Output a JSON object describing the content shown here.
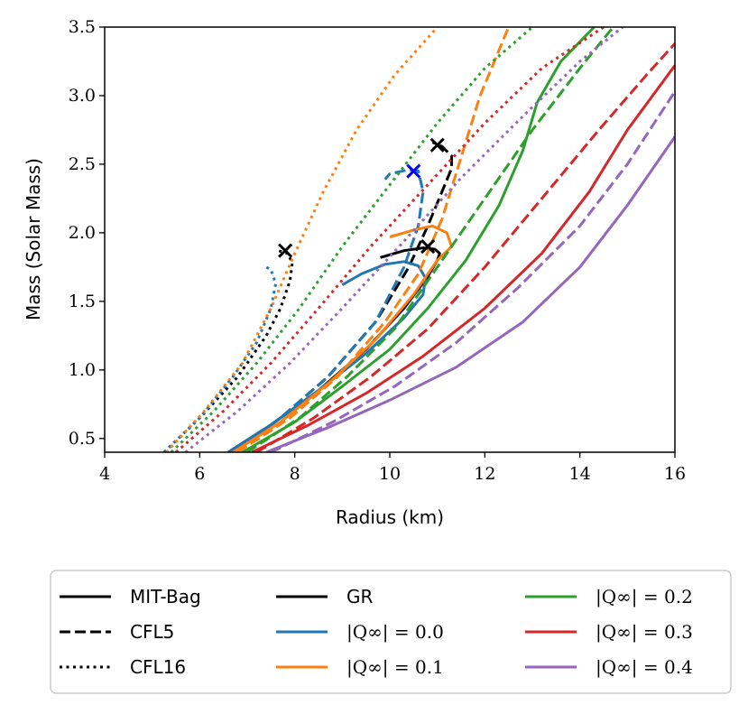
{
  "chart_data": {
    "type": "line",
    "title": "",
    "xlabel": "Radius (km)",
    "ylabel": "Mass (Solar Mass)",
    "xlim": [
      4,
      16
    ],
    "ylim": [
      0.4,
      3.5
    ],
    "xticks": [
      4,
      6,
      8,
      10,
      12,
      14,
      16
    ],
    "yticks": [
      0.5,
      1.0,
      1.5,
      2.0,
      2.5,
      3.0,
      3.5
    ],
    "xtick_labels": [
      "4",
      "6",
      "8",
      "10",
      "12",
      "14",
      "16"
    ],
    "ytick_labels": [
      "0.5",
      "1.0",
      "1.5",
      "2.0",
      "2.5",
      "3.0",
      "3.5"
    ],
    "grid": false,
    "legend_position": "below",
    "colors": {
      "GR": "#000000",
      "q0.0": "#1f77b4",
      "q0.1": "#ff7f0e",
      "q0.2": "#2ca02c",
      "q0.3": "#d62728",
      "q0.4": "#9467bd",
      "marker_blue": "#0000ff"
    },
    "legend": [
      {
        "label": "MIT-Bag",
        "color": "#000000",
        "style": "solid"
      },
      {
        "label": "CFL5",
        "color": "#000000",
        "style": "dashed"
      },
      {
        "label": "CFL16",
        "color": "#000000",
        "style": "dotted"
      },
      {
        "label": "GR",
        "color": "#000000",
        "style": "solid"
      },
      {
        "label": "|Q∞| = 0.0",
        "color": "#1f77b4",
        "style": "solid"
      },
      {
        "label": "|Q∞| = 0.1",
        "color": "#ff7f0e",
        "style": "solid"
      },
      {
        "label": "|Q∞| = 0.2",
        "color": "#2ca02c",
        "style": "solid"
      },
      {
        "label": "|Q∞| = 0.3",
        "color": "#d62728",
        "style": "solid"
      },
      {
        "label": "|Q∞| = 0.4",
        "color": "#9467bd",
        "style": "solid"
      }
    ],
    "series": [
      {
        "name": "GR MIT-Bag",
        "color": "#000000",
        "style": "solid",
        "points": [
          [
            6.6,
            0.4
          ],
          [
            7.5,
            0.6
          ],
          [
            8.5,
            0.85
          ],
          [
            9.5,
            1.15
          ],
          [
            10.3,
            1.45
          ],
          [
            10.8,
            1.68
          ],
          [
            11.0,
            1.8
          ],
          [
            11.05,
            1.85
          ],
          [
            10.95,
            1.88
          ],
          [
            10.7,
            1.89
          ],
          [
            10.3,
            1.87
          ],
          [
            9.8,
            1.82
          ]
        ]
      },
      {
        "name": "GR CFL5",
        "color": "#000000",
        "style": "dashed",
        "points": [
          [
            6.7,
            0.4
          ],
          [
            7.7,
            0.65
          ],
          [
            8.7,
            0.95
          ],
          [
            9.7,
            1.35
          ],
          [
            10.4,
            1.75
          ],
          [
            10.8,
            2.05
          ],
          [
            11.1,
            2.3
          ],
          [
            11.3,
            2.47
          ],
          [
            11.3,
            2.56
          ],
          [
            11.1,
            2.63
          ],
          [
            10.9,
            2.66
          ]
        ]
      },
      {
        "name": "GR CFL16",
        "color": "#000000",
        "style": "dotted",
        "points": [
          [
            5.25,
            0.4
          ],
          [
            6.0,
            0.65
          ],
          [
            6.8,
            0.95
          ],
          [
            7.4,
            1.25
          ],
          [
            7.7,
            1.45
          ],
          [
            7.9,
            1.65
          ],
          [
            7.95,
            1.78
          ],
          [
            7.85,
            1.85
          ],
          [
            7.65,
            1.87
          ]
        ]
      },
      {
        "name": "Q0.0 MIT-Bag",
        "color": "#1f77b4",
        "style": "solid",
        "points": [
          [
            6.6,
            0.4
          ],
          [
            7.5,
            0.6
          ],
          [
            8.5,
            0.85
          ],
          [
            9.5,
            1.12
          ],
          [
            10.3,
            1.38
          ],
          [
            10.7,
            1.55
          ],
          [
            10.75,
            1.67
          ],
          [
            10.6,
            1.76
          ],
          [
            10.3,
            1.79
          ],
          [
            9.9,
            1.77
          ],
          [
            9.4,
            1.7
          ],
          [
            9.0,
            1.62
          ]
        ]
      },
      {
        "name": "Q0.0 CFL5",
        "color": "#1f77b4",
        "style": "dashed",
        "points": [
          [
            6.7,
            0.4
          ],
          [
            7.7,
            0.65
          ],
          [
            8.7,
            0.95
          ],
          [
            9.7,
            1.35
          ],
          [
            10.3,
            1.75
          ],
          [
            10.6,
            2.05
          ],
          [
            10.7,
            2.3
          ],
          [
            10.6,
            2.45
          ],
          [
            10.4,
            2.46
          ],
          [
            10.0,
            2.43
          ],
          [
            9.9,
            2.39
          ]
        ]
      },
      {
        "name": "Q0.0 CFL16",
        "color": "#1f77b4",
        "style": "dotted",
        "points": [
          [
            5.25,
            0.4
          ],
          [
            6.0,
            0.65
          ],
          [
            6.7,
            0.95
          ],
          [
            7.2,
            1.2
          ],
          [
            7.5,
            1.45
          ],
          [
            7.6,
            1.63
          ],
          [
            7.5,
            1.73
          ],
          [
            7.4,
            1.75
          ]
        ]
      },
      {
        "name": "Q0.1 MIT-Bag",
        "color": "#ff7f0e",
        "style": "solid",
        "points": [
          [
            6.7,
            0.4
          ],
          [
            7.7,
            0.62
          ],
          [
            8.7,
            0.9
          ],
          [
            9.7,
            1.22
          ],
          [
            10.5,
            1.55
          ],
          [
            11.0,
            1.8
          ],
          [
            11.3,
            1.9
          ],
          [
            11.2,
            2.0
          ],
          [
            10.9,
            2.05
          ],
          [
            10.5,
            2.02
          ],
          [
            10.0,
            1.97
          ]
        ]
      },
      {
        "name": "Q0.1 CFL5",
        "color": "#ff7f0e",
        "style": "dashed",
        "points": [
          [
            6.8,
            0.4
          ],
          [
            7.9,
            0.65
          ],
          [
            8.9,
            0.95
          ],
          [
            9.9,
            1.35
          ],
          [
            10.6,
            1.7
          ],
          [
            11.1,
            2.1
          ],
          [
            11.5,
            2.55
          ],
          [
            11.9,
            3.0
          ],
          [
            12.5,
            3.5
          ]
        ]
      },
      {
        "name": "Q0.1 CFL16",
        "color": "#ff7f0e",
        "style": "dotted",
        "points": [
          [
            5.3,
            0.4
          ],
          [
            6.1,
            0.7
          ],
          [
            6.9,
            1.05
          ],
          [
            7.5,
            1.45
          ],
          [
            8.0,
            1.85
          ],
          [
            8.6,
            2.3
          ],
          [
            9.3,
            2.75
          ],
          [
            10.1,
            3.15
          ],
          [
            11.0,
            3.5
          ]
        ]
      },
      {
        "name": "Q0.2 MIT-Bag",
        "color": "#2ca02c",
        "style": "solid",
        "points": [
          [
            6.9,
            0.4
          ],
          [
            8.0,
            0.62
          ],
          [
            9.0,
            0.88
          ],
          [
            10.0,
            1.15
          ],
          [
            10.8,
            1.45
          ],
          [
            11.6,
            1.8
          ],
          [
            12.3,
            2.2
          ],
          [
            12.8,
            2.6
          ],
          [
            13.1,
            2.95
          ],
          [
            13.6,
            3.25
          ],
          [
            14.3,
            3.5
          ]
        ]
      },
      {
        "name": "Q0.2 CFL5",
        "color": "#2ca02c",
        "style": "dashed",
        "points": [
          [
            7.0,
            0.4
          ],
          [
            8.1,
            0.65
          ],
          [
            9.1,
            0.95
          ],
          [
            10.1,
            1.3
          ],
          [
            11.0,
            1.75
          ],
          [
            12.0,
            2.25
          ],
          [
            13.0,
            2.75
          ],
          [
            14.0,
            3.2
          ],
          [
            14.7,
            3.5
          ]
        ]
      },
      {
        "name": "Q0.2 CFL16",
        "color": "#2ca02c",
        "style": "dotted",
        "points": [
          [
            5.4,
            0.4
          ],
          [
            6.3,
            0.7
          ],
          [
            7.2,
            1.05
          ],
          [
            8.1,
            1.45
          ],
          [
            9.0,
            1.9
          ],
          [
            10.0,
            2.35
          ],
          [
            11.0,
            2.8
          ],
          [
            12.0,
            3.2
          ],
          [
            13.0,
            3.5
          ]
        ]
      },
      {
        "name": "Q0.3 MIT-Bag",
        "color": "#d62728",
        "style": "solid",
        "points": [
          [
            7.1,
            0.4
          ],
          [
            8.3,
            0.6
          ],
          [
            9.5,
            0.83
          ],
          [
            10.7,
            1.1
          ],
          [
            12.0,
            1.45
          ],
          [
            13.2,
            1.85
          ],
          [
            14.2,
            2.3
          ],
          [
            15.0,
            2.75
          ],
          [
            16.0,
            3.22
          ]
        ]
      },
      {
        "name": "Q0.3 CFL5",
        "color": "#d62728",
        "style": "dashed",
        "points": [
          [
            7.2,
            0.4
          ],
          [
            8.4,
            0.65
          ],
          [
            9.6,
            0.95
          ],
          [
            10.8,
            1.3
          ],
          [
            12.0,
            1.75
          ],
          [
            13.2,
            2.25
          ],
          [
            14.4,
            2.75
          ],
          [
            15.4,
            3.15
          ],
          [
            16.0,
            3.38
          ]
        ]
      },
      {
        "name": "Q0.3 CFL16",
        "color": "#d62728",
        "style": "dotted",
        "points": [
          [
            5.5,
            0.4
          ],
          [
            6.5,
            0.7
          ],
          [
            7.5,
            1.05
          ],
          [
            8.5,
            1.45
          ],
          [
            9.6,
            1.9
          ],
          [
            10.8,
            2.35
          ],
          [
            12.0,
            2.8
          ],
          [
            13.2,
            3.2
          ],
          [
            14.5,
            3.5
          ]
        ]
      },
      {
        "name": "Q0.4 MIT-Bag",
        "color": "#9467bd",
        "style": "solid",
        "points": [
          [
            7.4,
            0.4
          ],
          [
            8.7,
            0.58
          ],
          [
            10.0,
            0.78
          ],
          [
            11.4,
            1.02
          ],
          [
            12.8,
            1.35
          ],
          [
            14.0,
            1.75
          ],
          [
            15.0,
            2.2
          ],
          [
            16.0,
            2.7
          ]
        ]
      },
      {
        "name": "Q0.4 CFL5",
        "color": "#9467bd",
        "style": "dashed",
        "points": [
          [
            7.5,
            0.4
          ],
          [
            8.8,
            0.62
          ],
          [
            10.1,
            0.88
          ],
          [
            11.4,
            1.2
          ],
          [
            12.7,
            1.6
          ],
          [
            14.0,
            2.05
          ],
          [
            15.0,
            2.5
          ],
          [
            16.0,
            3.03
          ]
        ]
      },
      {
        "name": "Q0.4 CFL16",
        "color": "#9467bd",
        "style": "dotted",
        "points": [
          [
            5.7,
            0.4
          ],
          [
            6.8,
            0.7
          ],
          [
            7.9,
            1.05
          ],
          [
            9.0,
            1.45
          ],
          [
            10.2,
            1.9
          ],
          [
            11.5,
            2.4
          ],
          [
            12.8,
            2.85
          ],
          [
            14.0,
            3.25
          ],
          [
            14.9,
            3.5
          ]
        ]
      }
    ],
    "markers": [
      {
        "name": "max-mass-GR-MIT-Bag",
        "x": 10.8,
        "y": 1.9,
        "color": "#000000",
        "symbol": "x"
      },
      {
        "name": "max-mass-GR-CFL5",
        "x": 11.0,
        "y": 2.64,
        "color": "#000000",
        "symbol": "x"
      },
      {
        "name": "max-mass-GR-CFL16",
        "x": 7.8,
        "y": 1.87,
        "color": "#000000",
        "symbol": "x"
      },
      {
        "name": "max-mass-Q0-CFL5",
        "x": 10.5,
        "y": 2.45,
        "color": "#0000ff",
        "symbol": "x"
      }
    ]
  }
}
